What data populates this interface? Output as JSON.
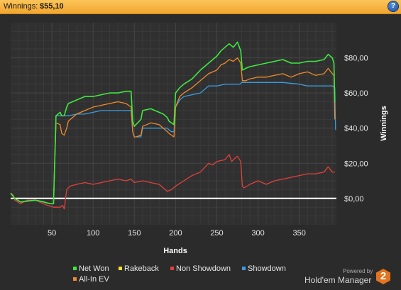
{
  "header": {
    "label": "Winnings:",
    "value": "$55,10",
    "help_icon": "question-icon",
    "help_glyph": "?"
  },
  "watermark": {
    "powered_by": "Powered by",
    "product": "Hold'em Manager",
    "badge": "2"
  },
  "colors": {
    "background": "#2b2b2b",
    "plot_background": "#303030",
    "grid": "#444444",
    "zero_line": "#ffffff",
    "title_bar": "#f5ac35"
  },
  "chart_data": {
    "type": "line",
    "title": "",
    "xlabel": "Hands",
    "ylabel": "Winnings",
    "xlim": [
      0,
      395
    ],
    "ylim": [
      -15,
      100
    ],
    "x_ticks": [
      50,
      100,
      150,
      200,
      250,
      300,
      350
    ],
    "y_ticks": [
      0,
      20,
      40,
      60,
      80
    ],
    "y_tick_labels": [
      "$0,00",
      "$20,00",
      "$40,00",
      "$60,00",
      "$80,00"
    ],
    "y_axis_side": "right",
    "grid": true,
    "legend_position": "bottom-left",
    "legend": [
      {
        "name": "Net Won",
        "color": "#3ee83e"
      },
      {
        "name": "Rakeback",
        "color": "#f0e02a"
      },
      {
        "name": "Non Showdown",
        "color": "#e0413d"
      },
      {
        "name": "Showdown",
        "color": "#3a9de0"
      },
      {
        "name": "All-In EV",
        "color": "#ef8a2a"
      }
    ],
    "series": [
      {
        "name": "Rakeback",
        "color": "#ffffff",
        "width": 2,
        "x": [
          0,
          395
        ],
        "y": [
          0,
          0
        ]
      },
      {
        "name": "Non Showdown",
        "color": "#e0413d",
        "width": 1.3,
        "x": [
          0,
          3,
          5,
          12,
          20,
          30,
          40,
          45,
          52,
          55,
          60,
          63,
          65,
          68,
          72,
          80,
          90,
          100,
          110,
          120,
          130,
          140,
          146,
          150,
          160,
          170,
          180,
          185,
          190,
          195,
          200,
          210,
          220,
          230,
          240,
          245,
          250,
          260,
          265,
          268,
          270,
          275,
          279,
          281,
          283,
          290,
          300,
          310,
          320,
          330,
          340,
          350,
          360,
          370,
          380,
          385,
          390,
          393
        ],
        "y": [
          3,
          2,
          -1,
          -3,
          -1,
          -1,
          -3,
          -4,
          -5,
          -5,
          -5,
          -4,
          -6,
          5,
          7,
          8,
          9,
          8,
          9,
          10,
          11,
          10,
          11,
          9,
          10,
          9,
          8,
          6,
          4,
          5,
          7,
          10,
          13,
          15,
          20,
          19,
          21,
          22,
          25,
          21,
          22,
          24,
          21,
          7,
          6,
          8,
          10,
          8,
          10,
          11,
          12,
          13,
          14,
          14,
          15,
          18,
          15,
          15
        ]
      },
      {
        "name": "Showdown",
        "color": "#3a9de0",
        "width": 1.3,
        "x": [
          0,
          5,
          12,
          30,
          40,
          48,
          52,
          55,
          60,
          70,
          80,
          90,
          100,
          110,
          120,
          140,
          146,
          148,
          150,
          152,
          158,
          160,
          180,
          190,
          192,
          195,
          198,
          200,
          205,
          210,
          230,
          240,
          250,
          260,
          270,
          278,
          280,
          300,
          330,
          350,
          360,
          370,
          380,
          390,
          393,
          394
        ],
        "y": [
          3,
          0,
          -2,
          -1,
          -2,
          -3,
          -3,
          47,
          47,
          47,
          48,
          48,
          49,
          50,
          50,
          50,
          50,
          38,
          35,
          35,
          35,
          40,
          40,
          40,
          39,
          38,
          38,
          52,
          56,
          58,
          60,
          64,
          64,
          65,
          65,
          65,
          66,
          66,
          66,
          65,
          64,
          64,
          64,
          64,
          63,
          39
        ]
      },
      {
        "name": "All-In EV",
        "color": "#ef8a2a",
        "width": 1.3,
        "x": [
          0,
          5,
          12,
          30,
          40,
          48,
          52,
          55,
          60,
          62,
          65,
          68,
          70,
          80,
          90,
          100,
          110,
          120,
          130,
          140,
          146,
          148,
          150,
          152,
          158,
          160,
          170,
          180,
          185,
          190,
          192,
          195,
          198,
          200,
          205,
          210,
          220,
          230,
          240,
          250,
          255,
          260,
          265,
          270,
          275,
          279,
          281,
          285,
          290,
          300,
          310,
          320,
          330,
          340,
          350,
          360,
          370,
          380,
          385,
          390,
          392,
          393
        ],
        "y": [
          3,
          0,
          -2,
          -1,
          -2,
          -3,
          -3,
          43,
          42,
          37,
          36,
          40,
          44,
          48,
          50,
          52,
          53,
          54,
          55,
          54,
          52,
          38,
          35,
          35,
          36,
          41,
          43,
          42,
          40,
          38,
          37,
          36,
          35,
          52,
          58,
          60,
          63,
          67,
          71,
          73,
          76,
          77,
          79,
          78,
          80,
          77,
          67,
          67,
          68,
          69,
          69,
          70,
          71,
          69,
          71,
          72,
          70,
          71,
          74,
          71,
          70,
          45
        ]
      },
      {
        "name": "Net Won",
        "color": "#3ee83e",
        "width": 1.6,
        "x": [
          0,
          5,
          12,
          30,
          40,
          48,
          52,
          55,
          60,
          62,
          65,
          68,
          70,
          80,
          90,
          100,
          110,
          120,
          130,
          140,
          146,
          148,
          150,
          152,
          158,
          160,
          170,
          180,
          185,
          190,
          192,
          195,
          198,
          200,
          205,
          210,
          220,
          230,
          240,
          250,
          255,
          260,
          265,
          270,
          275,
          279,
          281,
          285,
          290,
          300,
          310,
          320,
          330,
          340,
          350,
          360,
          370,
          380,
          385,
          390,
          392,
          393
        ],
        "y": [
          3,
          0,
          -2,
          -1,
          -2,
          -3,
          -3,
          47,
          49,
          47,
          47,
          52,
          54,
          56,
          58,
          58,
          59,
          60,
          60,
          61,
          61,
          44,
          41,
          42,
          45,
          50,
          51,
          49,
          48,
          46,
          44,
          43,
          42,
          60,
          63,
          65,
          68,
          73,
          77,
          81,
          84,
          86,
          88,
          86,
          89,
          84,
          73,
          74,
          75,
          76,
          77,
          78,
          79,
          77,
          77,
          78,
          78,
          79,
          82,
          80,
          77,
          55
        ]
      }
    ]
  }
}
